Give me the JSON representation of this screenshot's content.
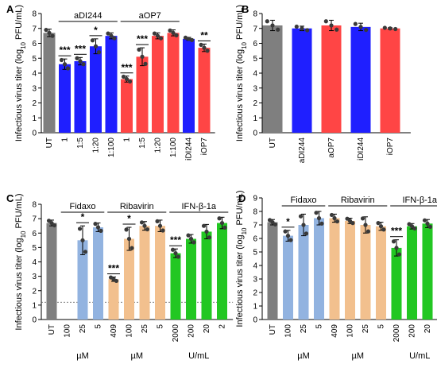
{
  "figure": {
    "background": "#ffffff"
  },
  "colors": {
    "UT": "#7f7f7f",
    "aDI244": "#1f1fff",
    "aOP7": "#ff4545",
    "iDI244": "#1f1fff",
    "iOP7": "#ff4545",
    "Fidaxo": "#92b3e0",
    "Ribavirin": "#f2c08e",
    "IFN": "#22c722",
    "dot": "#3a3a3a"
  },
  "chart_data": [
    {
      "panel": "A",
      "type": "bar",
      "ylabel_pre": "Infectious virus titer (log",
      "ylabel_sub": "10",
      "ylabel_post": " PFU/mL)",
      "ylim": [
        0,
        8
      ],
      "yticks": [
        "0",
        "1",
        "2",
        "3",
        "4",
        "5",
        "6",
        "7",
        "8"
      ],
      "categories": [
        "UT",
        "1",
        "1:5",
        "1:20",
        "1:100",
        "1",
        "1:5",
        "1:20",
        "1:100",
        "iDI244",
        "iOP7"
      ],
      "values": [
        6.7,
        4.6,
        4.8,
        5.8,
        6.5,
        3.6,
        5.1,
        6.5,
        6.7,
        6.3,
        5.7
      ],
      "errors": [
        0.25,
        0.35,
        0.25,
        0.5,
        0.2,
        0.2,
        0.6,
        0.2,
        0.2,
        0.1,
        0.25
      ],
      "color_keys": [
        "UT",
        "aDI244",
        "aDI244",
        "aDI244",
        "aDI244",
        "aOP7",
        "aOP7",
        "aOP7",
        "aOP7",
        "iDI244",
        "iOP7"
      ],
      "groups": [
        {
          "label": "aDI244",
          "from": 1,
          "to": 4
        },
        {
          "label": "aOP7",
          "from": 5,
          "to": 8
        }
      ],
      "significance": [
        "",
        "***",
        "***",
        "*",
        "",
        "***",
        "***",
        "",
        "",
        "",
        "**"
      ],
      "units": []
    },
    {
      "panel": "B",
      "type": "bar",
      "ylabel_pre": "Infectious virus titer (log",
      "ylabel_sub": "10",
      "ylabel_post": " PFU/mL)",
      "ylim": [
        0,
        8
      ],
      "yticks": [
        "0",
        "1",
        "2",
        "3",
        "4",
        "5",
        "6",
        "7",
        "8"
      ],
      "categories": [
        "UT",
        "aDI244",
        "aOP7",
        "iDI244",
        "iOP7"
      ],
      "values": [
        7.2,
        7.0,
        7.2,
        7.1,
        7.0
      ],
      "errors": [
        0.35,
        0.15,
        0.35,
        0.25,
        0.05
      ],
      "color_keys": [
        "UT",
        "aDI244",
        "aOP7",
        "iDI244",
        "iOP7"
      ],
      "groups": [],
      "significance": [
        "",
        "",
        "",
        "",
        ""
      ],
      "units": []
    },
    {
      "panel": "C",
      "type": "bar",
      "ylabel_pre": "Infectious virus titer (log",
      "ylabel_sub": "10",
      "ylabel_post": " PFU/mL)",
      "ylim": [
        0,
        8
      ],
      "yticks": [
        "0",
        "1",
        "2",
        "3",
        "4",
        "5",
        "6",
        "7",
        "8"
      ],
      "categories": [
        "UT",
        "100",
        "25",
        "5",
        "409",
        "100",
        "25",
        "5",
        "2000",
        "200",
        "20",
        "2"
      ],
      "values": [
        6.7,
        0,
        5.5,
        6.4,
        2.8,
        5.6,
        6.5,
        6.5,
        4.6,
        5.6,
        6.1,
        6.7
      ],
      "errors": [
        0.2,
        0,
        1.0,
        0.3,
        0.15,
        0.8,
        0.3,
        0.4,
        0.3,
        0.3,
        0.5,
        0.4
      ],
      "color_keys": [
        "UT",
        "Fidaxo",
        "Fidaxo",
        "Fidaxo",
        "Ribavirin",
        "Ribavirin",
        "Ribavirin",
        "Ribavirin",
        "IFN",
        "IFN",
        "IFN",
        "IFN"
      ],
      "groups": [
        {
          "label": "Fidaxo",
          "from": 1,
          "to": 3
        },
        {
          "label": "Ribavirin",
          "from": 4,
          "to": 7
        },
        {
          "label": "IFN-β-1a",
          "from": 8,
          "to": 11
        }
      ],
      "significance": [
        "",
        "",
        "*",
        "",
        "***",
        "*",
        "",
        "",
        "***",
        "",
        "",
        ""
      ],
      "detection_limit": 1.2,
      "units": [
        {
          "label": "µM",
          "from": 1,
          "to": 3
        },
        {
          "label": "µM",
          "from": 4,
          "to": 7
        },
        {
          "label": "U/mL",
          "from": 8,
          "to": 11
        }
      ]
    },
    {
      "panel": "D",
      "type": "bar",
      "ylabel_pre": "Infectious virus titer (log",
      "ylabel_sub": "10",
      "ylabel_post": " PFU/mL)",
      "ylim": [
        0,
        9
      ],
      "yticks": [
        "0",
        "1",
        "2",
        "3",
        "4",
        "5",
        "6",
        "7",
        "8",
        "9"
      ],
      "categories": [
        "UT",
        "100",
        "25",
        "5",
        "409",
        "100",
        "25",
        "5",
        "2000",
        "200",
        "20",
        "2"
      ],
      "values": [
        7.2,
        6.2,
        7.0,
        7.5,
        7.5,
        7.3,
        7.0,
        6.9,
        5.3,
        6.9,
        7.1,
        7.0
      ],
      "errors": [
        0.2,
        0.4,
        0.8,
        0.5,
        0.3,
        0.2,
        0.6,
        0.3,
        0.6,
        0.2,
        0.3,
        0.3
      ],
      "color_keys": [
        "UT",
        "Fidaxo",
        "Fidaxo",
        "Fidaxo",
        "Ribavirin",
        "Ribavirin",
        "Ribavirin",
        "Ribavirin",
        "IFN",
        "IFN",
        "IFN",
        "IFN"
      ],
      "groups": [
        {
          "label": "Fidaxo",
          "from": 1,
          "to": 3
        },
        {
          "label": "Ribavirin",
          "from": 4,
          "to": 7
        },
        {
          "label": "IFN-β-1a",
          "from": 8,
          "to": 11
        }
      ],
      "significance": [
        "",
        "*",
        "",
        "",
        "",
        "",
        "",
        "",
        "***",
        "",
        "",
        ""
      ],
      "units": [
        {
          "label": "µM",
          "from": 1,
          "to": 3
        },
        {
          "label": "µM",
          "from": 4,
          "to": 7
        },
        {
          "label": "U/mL",
          "from": 8,
          "to": 11
        }
      ]
    }
  ]
}
